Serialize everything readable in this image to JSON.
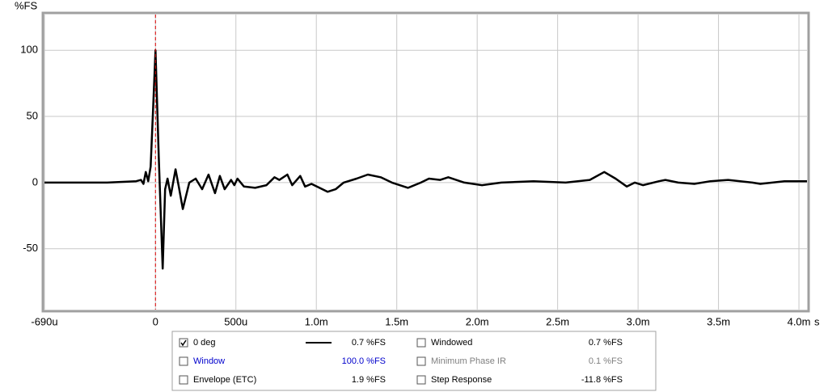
{
  "chart_data": {
    "type": "line",
    "y_label": "%FS",
    "x_unit": "s",
    "x": [
      -0.69,
      -0.3,
      -0.12,
      -0.09,
      -0.075,
      -0.06,
      -0.045,
      -0.03,
      -0.015,
      0,
      0.02,
      0.045,
      0.06,
      0.075,
      0.095,
      0.125,
      0.145,
      0.17,
      0.21,
      0.25,
      0.29,
      0.33,
      0.37,
      0.4,
      0.43,
      0.47,
      0.49,
      0.51,
      0.55,
      0.62,
      0.69,
      0.74,
      0.77,
      0.82,
      0.85,
      0.9,
      0.93,
      0.97,
      1.07,
      1.12,
      1.17,
      1.25,
      1.32,
      1.4,
      1.47,
      1.57,
      1.65,
      1.7,
      1.77,
      1.82,
      1.92,
      2.03,
      2.15,
      2.35,
      2.55,
      2.7,
      2.79,
      2.86,
      2.93,
      2.98,
      3.03,
      3.13,
      3.17,
      3.25,
      3.35,
      3.45,
      3.56,
      3.71,
      3.76,
      3.91,
      4.05
    ],
    "series": [
      {
        "name": "0 deg",
        "color": "#000000",
        "readout": "0.7 %FS",
        "checked": true,
        "values": [
          0,
          0,
          1,
          2,
          -1,
          8,
          1,
          12,
          55,
          100,
          20,
          -65,
          -5,
          3,
          -10,
          10,
          -3,
          -20,
          0,
          3,
          -5,
          6,
          -8,
          5,
          -5,
          2,
          -2,
          3,
          -3,
          -4,
          -2,
          4,
          2,
          6,
          -2,
          5,
          -3,
          -1,
          -7,
          -5,
          0,
          3,
          6,
          4,
          0,
          -4,
          0,
          3,
          2,
          4,
          0,
          -2,
          0,
          1,
          0,
          2,
          8,
          3,
          -3,
          0,
          -2,
          1,
          2,
          0,
          -1,
          1,
          2,
          0,
          -1,
          1,
          1
        ]
      }
    ],
    "other_traces": [
      {
        "name": "Windowed",
        "readout": "0.7 %FS",
        "checked": false,
        "color": "#000000"
      },
      {
        "name": "Window",
        "readout": "100.0 %FS",
        "checked": false,
        "color": "#0000cc"
      },
      {
        "name": "Minimum Phase IR",
        "readout": "0.1 %FS",
        "checked": false,
        "color": "#808080"
      },
      {
        "name": "Envelope (ETC)",
        "readout": "1.9 %FS",
        "checked": false,
        "color": "#000000"
      },
      {
        "name": "Step Response",
        "readout": "-11.8 %FS",
        "checked": false,
        "color": "#000000"
      }
    ],
    "xlim": [
      -0.69,
      4.05
    ],
    "ylim": [
      -96,
      127
    ],
    "xticks": [
      {
        "value": -0.69,
        "label": "-690u"
      },
      0,
      {
        "value": 0.5,
        "label": "500u"
      },
      {
        "value": 1.0,
        "label": "1.0m"
      },
      {
        "value": 1.5,
        "label": "1.5m"
      },
      {
        "value": 2.0,
        "label": "2.0m"
      },
      {
        "value": 2.5,
        "label": "2.5m"
      },
      {
        "value": 3.0,
        "label": "3.0m"
      },
      {
        "value": 3.5,
        "label": "3.5m"
      },
      {
        "value": 4.0,
        "label": "4.0m"
      }
    ],
    "yticks": [
      -50,
      0,
      50,
      100
    ],
    "grid": true,
    "marker_x": 0,
    "marker_color": "#dd0000"
  }
}
